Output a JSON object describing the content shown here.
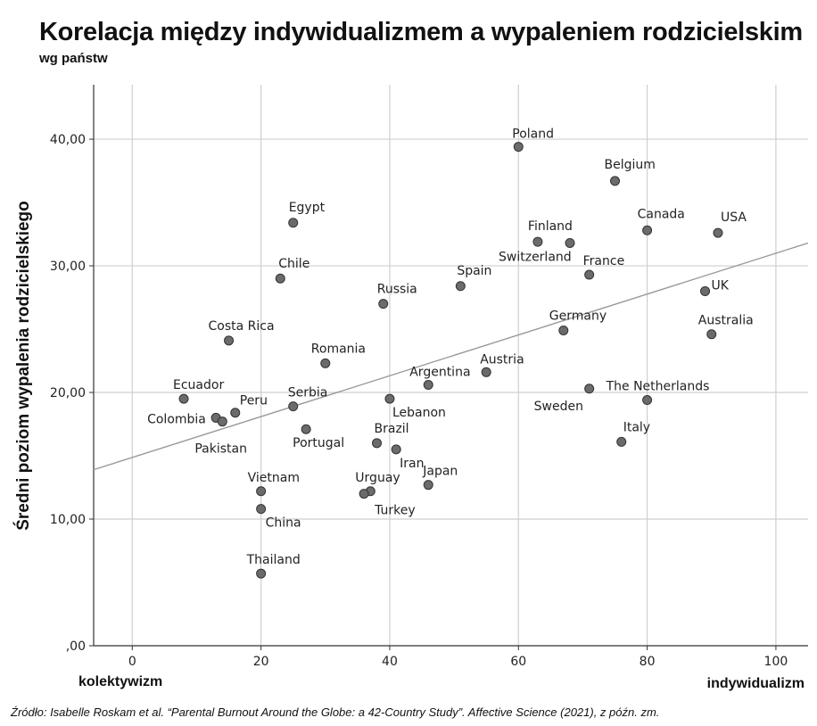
{
  "header": {
    "title": "Korelacja między indywidualizmem a wypaleniem rodzicielskim",
    "subtitle": "wg państw"
  },
  "axes": {
    "ylabel": "Średni poziom wypalenia rodzicielskiego",
    "xlabel_left": "kolektywizm",
    "xlabel_right": "indywidualizm"
  },
  "source": "Źródło: Isabelle Roskam et al. “Parental Burnout Around the Globe: a 42-Country Study”. Affective Science (2021), z późn. zm.",
  "chart_data": {
    "type": "scatter",
    "xlim": [
      -6,
      105
    ],
    "ylim": [
      0,
      44.3
    ],
    "xticks": [
      0,
      20,
      40,
      60,
      80,
      100
    ],
    "yticks": [
      0,
      10,
      20,
      30,
      40
    ],
    "xtick_labels": [
      "0",
      "20",
      "40",
      "60",
      "80",
      "100"
    ],
    "ytick_labels": [
      ",00",
      "10,00",
      "20,00",
      "30,00",
      "40,00"
    ],
    "grid": true,
    "marker_color": "#6b6b6b",
    "line_color": "#999999",
    "trendline": {
      "x": [
        -6,
        105
      ],
      "y": [
        13.9,
        31.8
      ]
    },
    "points": [
      {
        "label": "Poland",
        "x": 60,
        "y": 39.4
      },
      {
        "label": "Belgium",
        "x": 75,
        "y": 36.7
      },
      {
        "label": "Egypt",
        "x": 25,
        "y": 33.4
      },
      {
        "label": "Canada",
        "x": 80,
        "y": 32.8
      },
      {
        "label": "USA",
        "x": 91,
        "y": 32.6
      },
      {
        "label": "Finland",
        "x": 63,
        "y": 31.9
      },
      {
        "label": "Switzerland",
        "x": 68,
        "y": 31.8
      },
      {
        "label": "France",
        "x": 71,
        "y": 29.3
      },
      {
        "label": "Chile",
        "x": 23,
        "y": 29.0
      },
      {
        "label": "Spain",
        "x": 51,
        "y": 28.4
      },
      {
        "label": "UK",
        "x": 89,
        "y": 28.0
      },
      {
        "label": "Russia",
        "x": 39,
        "y": 27.0
      },
      {
        "label": "Germany",
        "x": 67,
        "y": 24.9
      },
      {
        "label": "Australia",
        "x": 90,
        "y": 24.6
      },
      {
        "label": "Costa Rica",
        "x": 15,
        "y": 24.1
      },
      {
        "label": "Romania",
        "x": 30,
        "y": 22.3
      },
      {
        "label": "Austria",
        "x": 55,
        "y": 21.6
      },
      {
        "label": "Argentina",
        "x": 46,
        "y": 20.6
      },
      {
        "label": "Sweden",
        "x": 71,
        "y": 20.3
      },
      {
        "label": "Ecuador",
        "x": 8,
        "y": 19.5
      },
      {
        "label": "Lebanon",
        "x": 40,
        "y": 19.5
      },
      {
        "label": "The Netherlands",
        "x": 80,
        "y": 19.4
      },
      {
        "label": "Serbia",
        "x": 25,
        "y": 18.9
      },
      {
        "label": "Peru",
        "x": 16,
        "y": 18.4
      },
      {
        "label": "Colombia",
        "x": 13,
        "y": 18.0
      },
      {
        "label": "Pakistan",
        "x": 14,
        "y": 17.7
      },
      {
        "label": "Portugal",
        "x": 27,
        "y": 17.1
      },
      {
        "label": "Italy",
        "x": 76,
        "y": 16.1
      },
      {
        "label": "Brazil",
        "x": 38,
        "y": 16.0
      },
      {
        "label": "Iran",
        "x": 41,
        "y": 15.5
      },
      {
        "label": "Japan",
        "x": 46,
        "y": 12.7
      },
      {
        "label": "Vietnam",
        "x": 20,
        "y": 12.2
      },
      {
        "label": "Urguay",
        "x": 37,
        "y": 12.2
      },
      {
        "label": "Turkey",
        "x": 36,
        "y": 12.0
      },
      {
        "label": "China",
        "x": 20,
        "y": 10.8
      },
      {
        "label": "Thailand",
        "x": 20,
        "y": 5.7
      }
    ]
  }
}
